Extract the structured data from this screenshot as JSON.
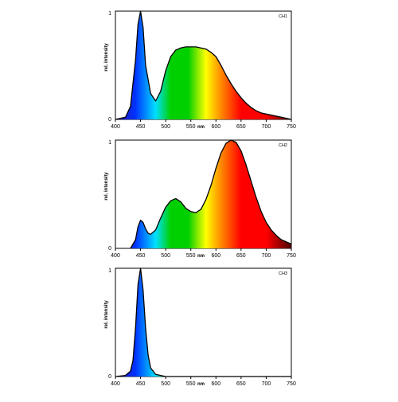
{
  "chart_data": [
    {
      "type": "area",
      "panel_label": "CH1",
      "xlabel": "nm",
      "ylabel": "rel. intensity",
      "xlim": [
        400,
        750
      ],
      "ylim": [
        0,
        1
      ],
      "x_ticks": [
        400,
        450,
        500,
        550,
        600,
        650,
        700,
        750
      ],
      "y_ticks": [
        0,
        1
      ],
      "fill": "spectrum-gradient",
      "x": [
        400,
        420,
        430,
        440,
        445,
        450,
        455,
        460,
        470,
        480,
        490,
        500,
        510,
        520,
        530,
        540,
        550,
        560,
        570,
        580,
        590,
        600,
        610,
        620,
        630,
        640,
        650,
        660,
        670,
        680,
        690,
        700,
        710,
        720,
        730,
        740,
        750
      ],
      "values": [
        0,
        0.02,
        0.12,
        0.55,
        0.88,
        1.0,
        0.85,
        0.5,
        0.24,
        0.17,
        0.26,
        0.45,
        0.58,
        0.64,
        0.66,
        0.67,
        0.67,
        0.67,
        0.66,
        0.65,
        0.62,
        0.58,
        0.5,
        0.41,
        0.33,
        0.26,
        0.2,
        0.15,
        0.11,
        0.08,
        0.06,
        0.05,
        0.04,
        0.03,
        0.02,
        0.01,
        0
      ]
    },
    {
      "type": "area",
      "panel_label": "CH2",
      "xlabel": "nm",
      "ylabel": "rel. intensity",
      "xlim": [
        400,
        750
      ],
      "ylim": [
        0,
        1
      ],
      "x_ticks": [
        400,
        450,
        500,
        550,
        600,
        650,
        700,
        750
      ],
      "y_ticks": [
        0,
        1
      ],
      "fill": "spectrum-gradient",
      "x": [
        430,
        440,
        445,
        450,
        455,
        460,
        465,
        470,
        480,
        490,
        500,
        510,
        520,
        530,
        540,
        550,
        560,
        570,
        580,
        590,
        600,
        610,
        620,
        630,
        640,
        650,
        660,
        670,
        680,
        690,
        700,
        710,
        720,
        730,
        740,
        750
      ],
      "values": [
        0,
        0.08,
        0.2,
        0.26,
        0.24,
        0.18,
        0.14,
        0.13,
        0.17,
        0.28,
        0.38,
        0.44,
        0.46,
        0.43,
        0.37,
        0.34,
        0.33,
        0.36,
        0.45,
        0.58,
        0.74,
        0.88,
        0.97,
        1.0,
        0.98,
        0.9,
        0.77,
        0.62,
        0.47,
        0.34,
        0.24,
        0.17,
        0.12,
        0.08,
        0.06,
        0.04
      ]
    },
    {
      "type": "area",
      "panel_label": "CH3",
      "xlabel": "nm",
      "ylabel": "rel. intensity",
      "xlim": [
        400,
        750
      ],
      "ylim": [
        0,
        1
      ],
      "x_ticks": [
        400,
        450,
        500,
        550,
        600,
        650,
        700,
        750
      ],
      "y_ticks": [
        0,
        1
      ],
      "fill": "spectrum-gradient",
      "x": [
        400,
        420,
        430,
        435,
        440,
        445,
        450,
        455,
        460,
        465,
        470,
        480,
        490,
        500,
        510,
        750
      ],
      "values": [
        0,
        0.01,
        0.05,
        0.15,
        0.45,
        0.85,
        1.0,
        0.8,
        0.45,
        0.2,
        0.08,
        0.02,
        0.01,
        0,
        0,
        0
      ]
    }
  ],
  "colors": {
    "axis": "#000000",
    "outline": "#000000",
    "violet": "#2a0ba8",
    "blue": "#0033ff",
    "cyan": "#00e0ff",
    "green": "#00d000",
    "yellow": "#ffff00",
    "orange": "#ff8a00",
    "red": "#ff0000",
    "dark_red": "#4a0000"
  }
}
